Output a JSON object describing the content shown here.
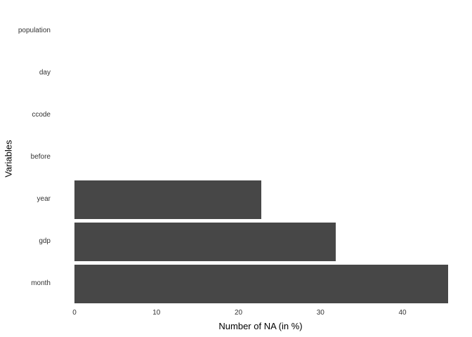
{
  "chart_data": {
    "type": "bar",
    "orientation": "horizontal",
    "title": "",
    "xlabel": "Number of NA (in %)",
    "ylabel": "Variables",
    "categories": [
      "population",
      "day",
      "ccode",
      "before",
      "year",
      "gdp",
      "month"
    ],
    "values": [
      0,
      0,
      0,
      0,
      22.8,
      31.9,
      45.6
    ],
    "x_ticks": [
      0,
      10,
      20,
      30,
      40
    ],
    "xlim": [
      0,
      47.8
    ],
    "grid": false,
    "legend": "none",
    "bar_color": "#474747",
    "axis_text_color": "#333333",
    "title_text_color": "#000000",
    "background_color": "#ffffff"
  }
}
